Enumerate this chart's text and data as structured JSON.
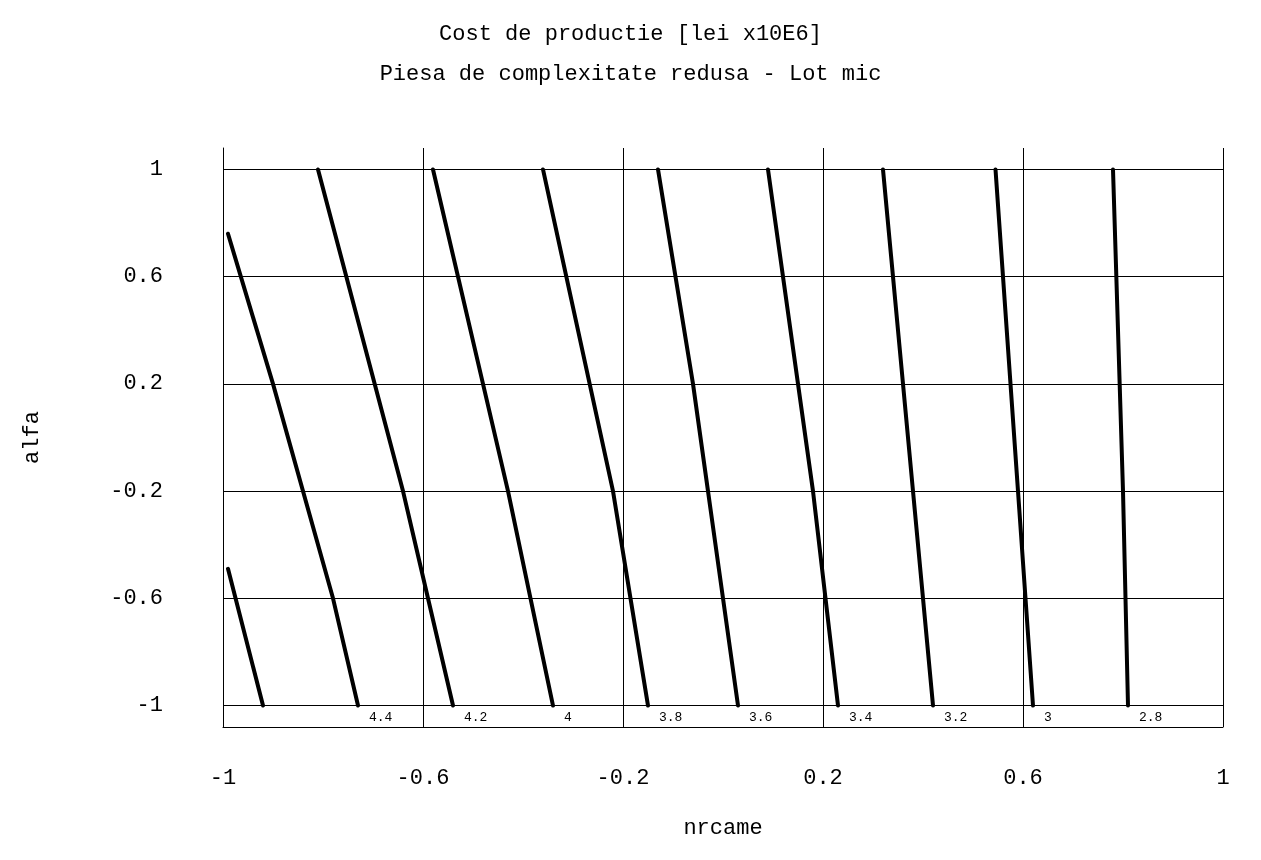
{
  "chart_data": {
    "type": "line",
    "title": "Cost de productie [lei x10E6]",
    "subtitle": "Piesa de complexitate redusa - Lot mic",
    "xlabel": "nrcame",
    "ylabel": "alfa",
    "xlim": [
      -1,
      1
    ],
    "ylim": [
      -1.08,
      1.08
    ],
    "xticks": [
      -1,
      -0.6,
      -0.2,
      0.2,
      0.6,
      1
    ],
    "yticks": [
      -1,
      -0.6,
      -0.2,
      0.2,
      0.6,
      1
    ],
    "grid": true,
    "series": [
      {
        "color": "#000000",
        "x": [
          -0.99,
          -0.92
        ],
        "values": [
          -0.49,
          -1
        ]
      },
      {
        "name": "4.4",
        "color": "#000000",
        "x": [
          -0.99,
          -0.9,
          -0.78,
          -0.73
        ],
        "values": [
          0.76,
          0.2,
          -0.6,
          -1
        ]
      },
      {
        "name": "4.2",
        "color": "#000000",
        "x": [
          -0.81,
          -0.64,
          -0.54
        ],
        "values": [
          1,
          -0.2,
          -1
        ]
      },
      {
        "name": "4",
        "color": "#000000",
        "x": [
          -0.58,
          -0.43,
          -0.34
        ],
        "values": [
          1,
          -0.2,
          -1
        ]
      },
      {
        "name": "3.8",
        "color": "#000000",
        "x": [
          -0.36,
          -0.22,
          -0.15
        ],
        "values": [
          1,
          -0.2,
          -1
        ]
      },
      {
        "name": "3.6",
        "color": "#000000",
        "x": [
          -0.13,
          -0.06,
          -0.03,
          0.03
        ],
        "values": [
          1,
          0.2,
          -0.2,
          -1
        ]
      },
      {
        "name": "3.4",
        "color": "#000000",
        "x": [
          0.09,
          0.18,
          0.23
        ],
        "values": [
          1,
          -0.2,
          -1
        ]
      },
      {
        "name": "3.2",
        "color": "#000000",
        "x": [
          0.32,
          0.38,
          0.42
        ],
        "values": [
          1,
          -0.2,
          -1
        ]
      },
      {
        "name": "3",
        "color": "#000000",
        "x": [
          0.545,
          0.59,
          0.62
        ],
        "values": [
          1,
          -0.2,
          -1
        ]
      },
      {
        "name": "2.8",
        "color": "#000000",
        "x": [
          0.78,
          0.8,
          0.81
        ],
        "values": [
          1,
          -0.2,
          -1
        ]
      }
    ]
  }
}
